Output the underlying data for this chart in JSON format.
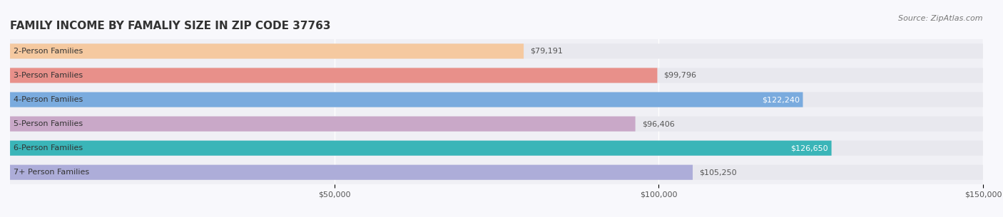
{
  "title": "FAMILY INCOME BY FAMALIY SIZE IN ZIP CODE 37763",
  "source": "Source: ZipAtlas.com",
  "categories": [
    "2-Person Families",
    "3-Person Families",
    "4-Person Families",
    "5-Person Families",
    "6-Person Families",
    "7+ Person Families"
  ],
  "values": [
    79191,
    99796,
    122240,
    96406,
    126650,
    105250
  ],
  "bar_colors": [
    "#f5c9a0",
    "#e8908a",
    "#7aabde",
    "#c9a8c8",
    "#3ab5b8",
    "#adadd9"
  ],
  "label_colors": [
    "#555555",
    "#555555",
    "#ffffff",
    "#555555",
    "#ffffff",
    "#555555"
  ],
  "xlim": [
    0,
    150000
  ],
  "xticks": [
    0,
    50000,
    100000,
    150000
  ],
  "xtick_labels": [
    "$50,000",
    "$100,000",
    "$150,000"
  ],
  "background_color": "#f0f0f5",
  "bar_background": "#e8e8ee",
  "title_fontsize": 11,
  "source_fontsize": 8,
  "label_fontsize": 8,
  "value_fontsize": 8,
  "bar_height": 0.62,
  "fig_width": 14.06,
  "fig_height": 3.05
}
